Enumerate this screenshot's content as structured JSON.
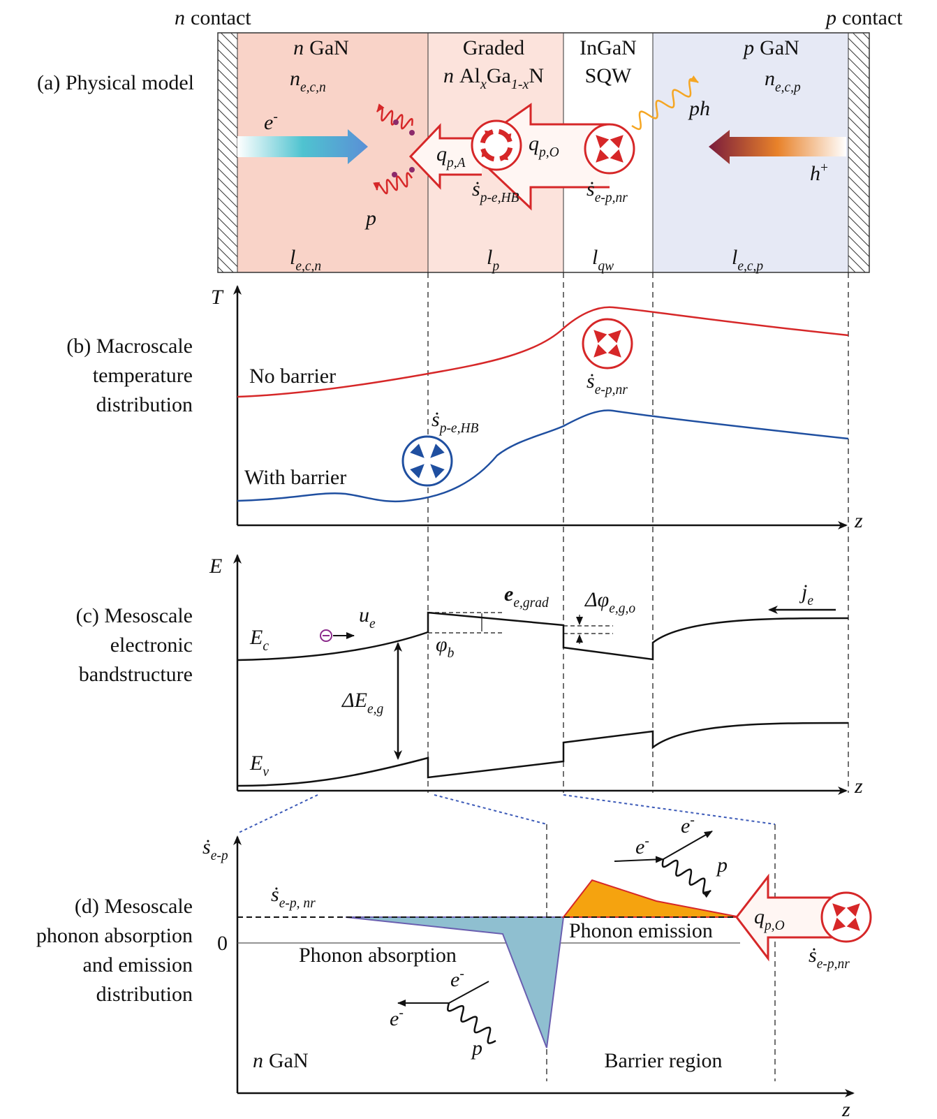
{
  "header": {
    "n_contact": [
      "n",
      "contact"
    ],
    "p_contact": [
      "p",
      "contact"
    ]
  },
  "panel_a": {
    "label": "(a) Physical model",
    "layers": [
      {
        "name": [
          "n",
          "GaN"
        ],
        "density": {
          "sym": "n",
          "sub": "e,c,n"
        },
        "length": {
          "sym": "l",
          "sub": "e,c,n"
        }
      },
      {
        "name": [
          "Graded",
          "n",
          "Al",
          "x",
          "Ga",
          "1-x",
          "N"
        ],
        "length": {
          "sym": "l",
          "sub": "p"
        }
      },
      {
        "name": [
          "InGaN",
          "SQW"
        ],
        "length": {
          "sym": "l",
          "sub": "qw"
        }
      },
      {
        "name": [
          "p",
          "GaN"
        ],
        "density": {
          "sym": "n",
          "sub": "e,c,p"
        },
        "length": {
          "sym": "l",
          "sub": "e,c,p"
        }
      }
    ],
    "electron": {
      "sym": "e",
      "sup": "-"
    },
    "hole": {
      "sym": "h",
      "sup": "+"
    },
    "phonon": {
      "sym": "p"
    },
    "photon": {
      "sym": "ph"
    },
    "q_A": {
      "sym": "q",
      "sub": "p,A"
    },
    "q_O": {
      "sym": "q",
      "sub": "p,O"
    },
    "s_HB": {
      "sym": "ṡ",
      "sub": "p-e,HB"
    },
    "s_nr": {
      "sym": "ṡ",
      "sub": "e-p,nr"
    }
  },
  "panel_b": {
    "label": [
      "(b) Macroscale",
      "temperature",
      "distribution"
    ],
    "y_axis": {
      "sym": "T"
    },
    "x_axis": {
      "sym": "z"
    },
    "no_barrier": "No barrier",
    "with_barrier": "With barrier",
    "s_nr": {
      "sym": "ṡ",
      "sub": "e-p,nr"
    },
    "s_HB": {
      "sym": "ṡ",
      "sub": "p-e,HB"
    }
  },
  "panel_c": {
    "label": [
      "(c) Mesoscale",
      "electronic",
      "bandstructure"
    ],
    "y_axis": {
      "sym": "E"
    },
    "x_axis": {
      "sym": "z"
    },
    "conduction": {
      "sym": "E",
      "sub": "c"
    },
    "valence": {
      "sym": "E",
      "sub": "v"
    },
    "velocity": {
      "sym": "u",
      "sub": "e"
    },
    "gap": {
      "sym": "ΔE",
      "sub": "e,g"
    },
    "field": {
      "sym": "e",
      "sub": "e,grad"
    },
    "offset": {
      "sym": "Δφ",
      "sub": "e,g,o"
    },
    "barrier": {
      "sym": "φ",
      "sub": "b"
    },
    "current": {
      "sym": "j",
      "sub": "e"
    }
  },
  "panel_d": {
    "label": [
      "(d) Mesoscale",
      "phonon absorption",
      "and emission",
      "distribution"
    ],
    "y_axis": {
      "sym": "ṡ",
      "sub": "e-p"
    },
    "x_axis": {
      "sym": "z"
    },
    "nr_level": {
      "sym": "ṡ",
      "sub": "e-p, nr"
    },
    "zero": "0",
    "absorption": "Phonon absorption",
    "emission": "Phonon emission",
    "region_left": [
      "n",
      "GaN"
    ],
    "region_right": "Barrier region",
    "emission_in": {
      "sym": "e",
      "sup": "-"
    },
    "emission_out": {
      "sym": "e",
      "sup": "-"
    },
    "emission_phonon": {
      "sym": "p"
    },
    "absorption_in": {
      "sym": "e",
      "sup": "-"
    },
    "absorption_out": {
      "sym": "e",
      "sup": "-"
    },
    "absorption_phonon": {
      "sym": "p"
    },
    "q_O": {
      "sym": "q",
      "sub": "p,O"
    },
    "s_nr": {
      "sym": "ṡ",
      "sub": "e-p,nr"
    }
  }
}
